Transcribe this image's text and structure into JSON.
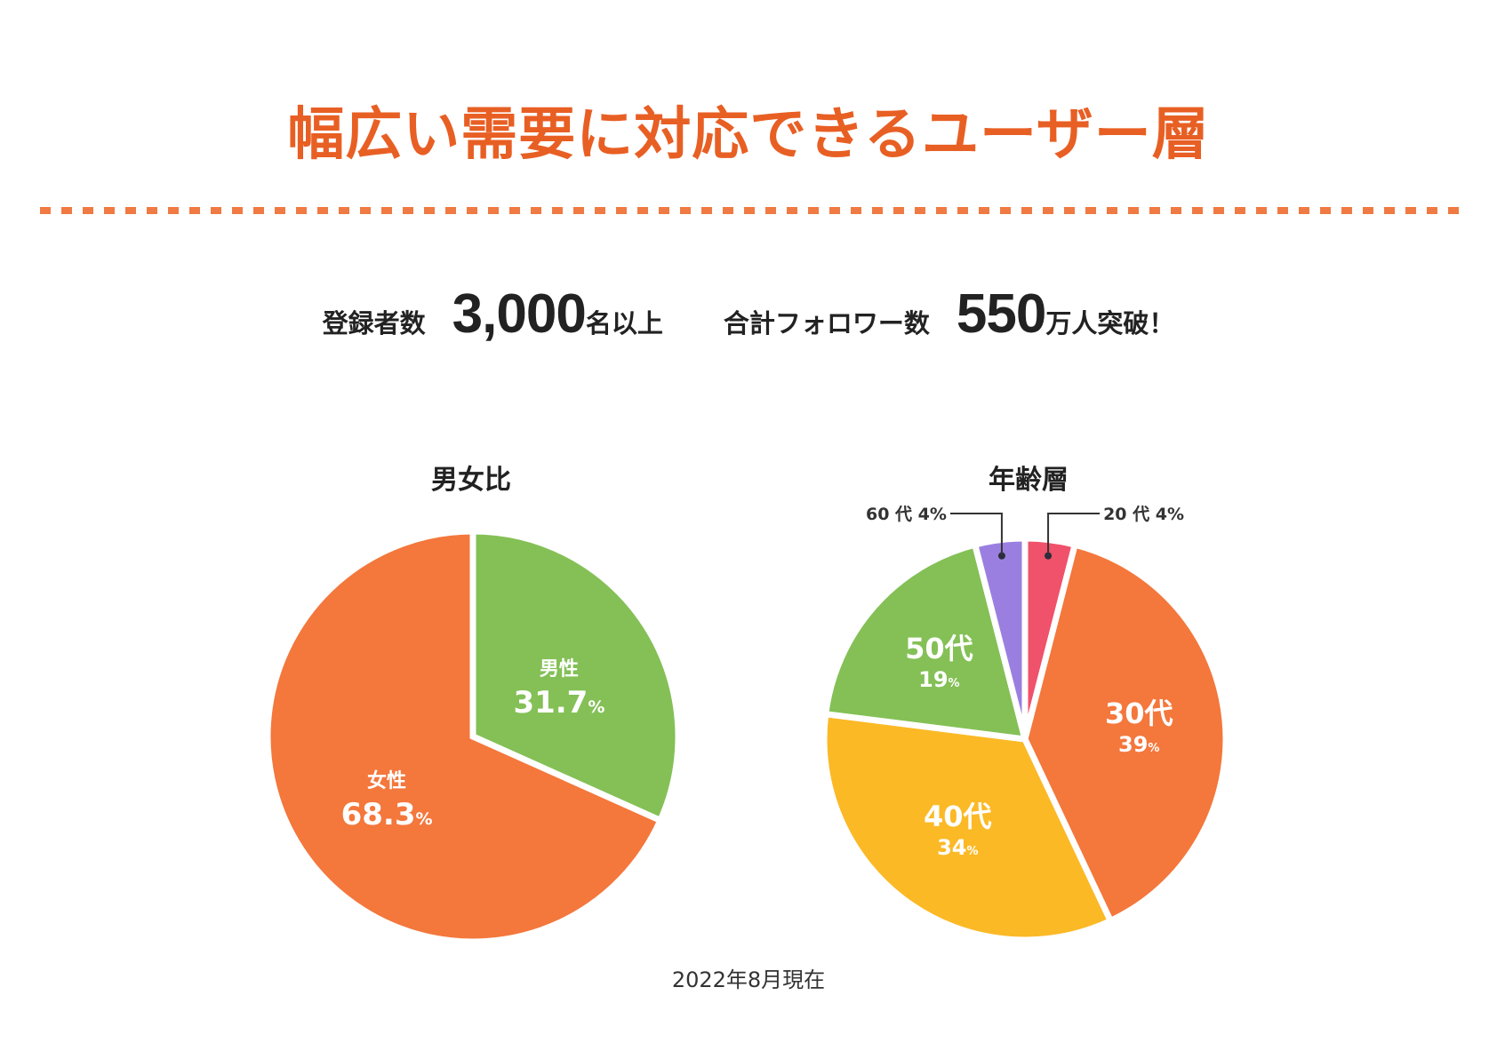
{
  "title": "幅広い需要に対応できるユーザー層",
  "stats": [
    {
      "label": "登録者数",
      "value": "3,000",
      "suffix": "名以上"
    },
    {
      "label": "合計フォロワー数",
      "value": "550",
      "suffix": "万人突破！"
    }
  ],
  "footnote": "2022年8月現在",
  "colors": {
    "title": "#e85f24",
    "orange": "#f4773c",
    "green": "#84c056",
    "yellow": "#fbb926",
    "purple": "#9b7fe0",
    "pink": "#f0516b"
  },
  "chart_data": [
    {
      "type": "pie",
      "title": "男女比",
      "categories": [
        "男性",
        "女性"
      ],
      "values": [
        31.7,
        68.3
      ],
      "unit": "%",
      "colors": [
        "#84c056",
        "#f4773c"
      ],
      "start_angle_deg": 0,
      "direction": "clockwise",
      "legend": "none",
      "labels": [
        {
          "name": "男性",
          "value": "31.7",
          "unit": "%"
        },
        {
          "name": "女性",
          "value": "68.3",
          "unit": "%"
        }
      ]
    },
    {
      "type": "pie",
      "title": "年齢層",
      "categories": [
        "20代",
        "30代",
        "40代",
        "50代",
        "60代"
      ],
      "values": [
        4,
        39,
        34,
        19,
        4
      ],
      "unit": "%",
      "colors": [
        "#f0516b",
        "#f4773c",
        "#fbb926",
        "#84c056",
        "#9b7fe0"
      ],
      "start_angle_deg": 0,
      "direction": "clockwise",
      "legend": "none",
      "labels": [
        {
          "name": "20代",
          "value": "4",
          "unit": "%",
          "callout": "20 代 4%"
        },
        {
          "name": "30代",
          "value": "39",
          "unit": "%"
        },
        {
          "name": "40代",
          "value": "34",
          "unit": "%"
        },
        {
          "name": "50代",
          "value": "19",
          "unit": "%"
        },
        {
          "name": "60代",
          "value": "4",
          "unit": "%",
          "callout": "60 代 4%"
        }
      ]
    }
  ]
}
